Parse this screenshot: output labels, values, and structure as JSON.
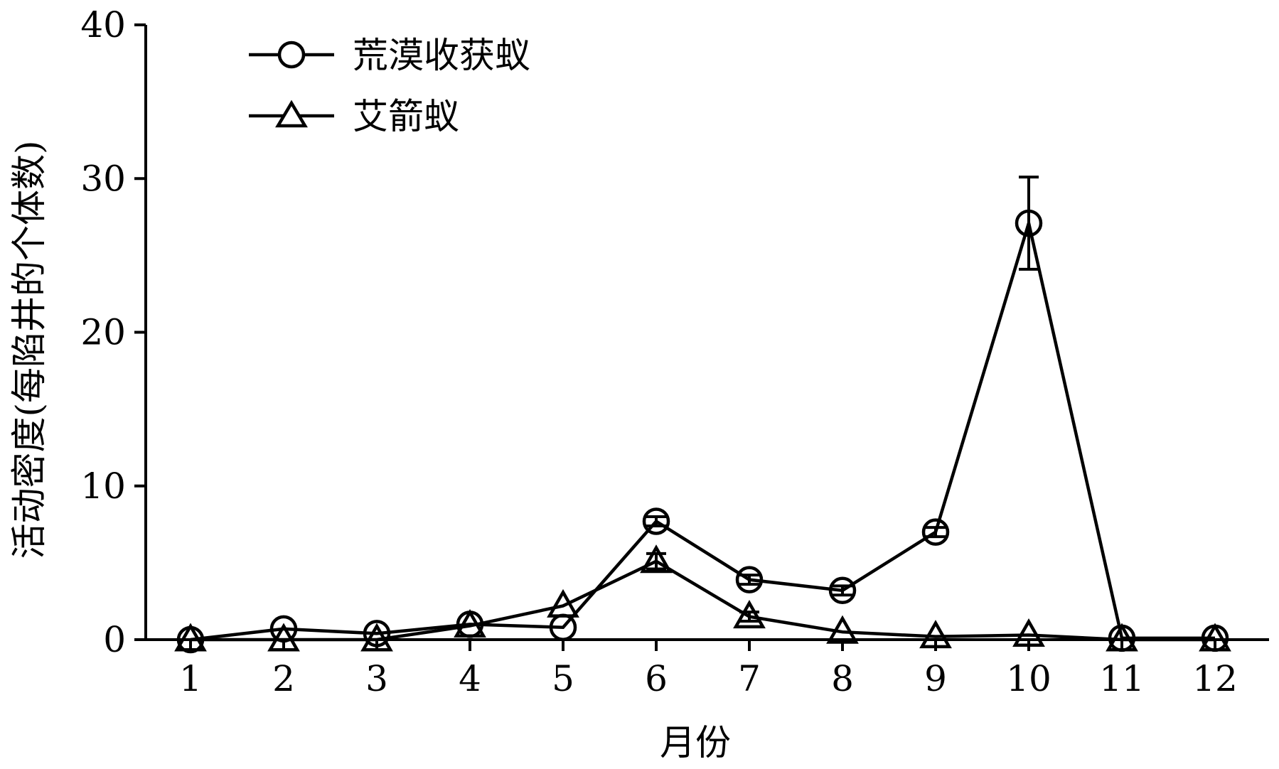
{
  "chart_data": {
    "type": "line",
    "xlabel": "月份",
    "ylabel": "活动密度(每陷井的个体数)",
    "ylim": [
      0,
      40
    ],
    "yticks": [
      0,
      10,
      20,
      30,
      40
    ],
    "categories": [
      "1",
      "2",
      "3",
      "4",
      "5",
      "6",
      "7",
      "8",
      "9",
      "10",
      "11",
      "12"
    ],
    "legend_position": "top-left",
    "grid": false,
    "series": [
      {
        "name": "荒漠收获蚁",
        "marker": "circle",
        "values": [
          0,
          0.7,
          0.4,
          1.0,
          0.8,
          7.7,
          3.9,
          3.2,
          7.0,
          27.1,
          0.1,
          0.1
        ],
        "errors": [
          0,
          0,
          0,
          0,
          0,
          0.3,
          0.3,
          0.3,
          0.3,
          3.0,
          0,
          0
        ]
      },
      {
        "name": "艾箭蚁",
        "marker": "triangle",
        "values": [
          0,
          0,
          0,
          0.9,
          2.2,
          5.1,
          1.5,
          0.5,
          0.2,
          0.3,
          0,
          0
        ],
        "errors": [
          0,
          0,
          0,
          0,
          0,
          0.5,
          0.3,
          0,
          0,
          0,
          0,
          0
        ]
      }
    ]
  }
}
